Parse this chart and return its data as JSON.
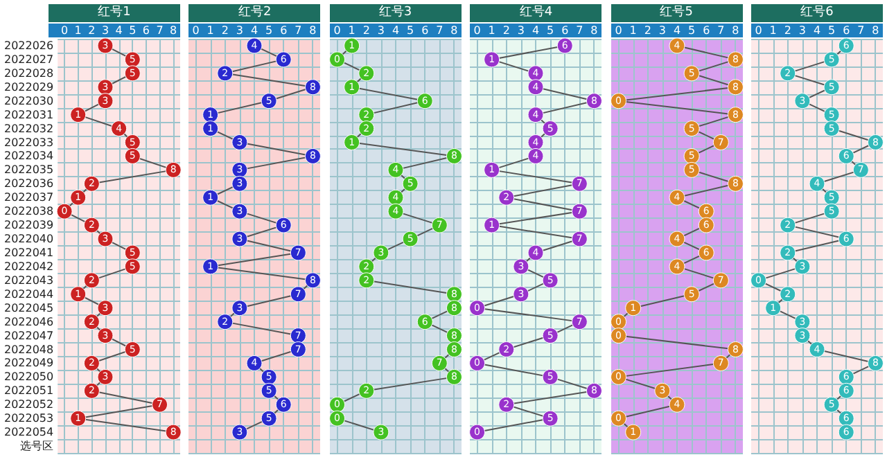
{
  "chart_data": [
    {
      "type": "line",
      "title": "红号1",
      "orientation": "horizontal",
      "categories": [
        "2022026",
        "2022027",
        "2022028",
        "2022029",
        "2022030",
        "2022031",
        "2022032",
        "2022033",
        "2022034",
        "2022035",
        "2022036",
        "2022037",
        "2022038",
        "2022039",
        "2022040",
        "2022041",
        "2022042",
        "2022043",
        "2022044",
        "2022045",
        "2022046",
        "2022047",
        "2022048",
        "2022049",
        "2022050",
        "2022051",
        "2022052",
        "2022053",
        "2022054",
        "选号区"
      ],
      "values": [
        3,
        5,
        5,
        3,
        3,
        1,
        4,
        5,
        5,
        8,
        2,
        1,
        0,
        2,
        3,
        5,
        5,
        2,
        1,
        3,
        2,
        3,
        5,
        2,
        3,
        2,
        7,
        1,
        8,
        null
      ],
      "color": "#cc2222",
      "xlim": [
        -0.5,
        8.5
      ],
      "xticks": [
        0,
        1,
        2,
        3,
        4,
        5,
        6,
        7,
        8
      ],
      "grid": true,
      "marker": "circle",
      "data_labels": true
    },
    {
      "type": "line",
      "title": "红号2",
      "orientation": "horizontal",
      "categories": [
        null,
        null,
        null,
        null,
        null,
        null,
        null,
        null,
        null,
        null,
        null,
        null,
        null,
        null,
        null,
        null,
        null,
        null,
        null,
        null,
        null,
        null,
        null,
        null,
        null,
        null,
        null,
        null,
        null,
        null
      ],
      "values": [
        4,
        6,
        2,
        8,
        5,
        1,
        1,
        3,
        8,
        3,
        3,
        1,
        3,
        6,
        3,
        7,
        1,
        8,
        7,
        3,
        2,
        7,
        7,
        4,
        5,
        5,
        6,
        5,
        3,
        null
      ],
      "color": "#2a2ad0",
      "xlim": [
        -0.5,
        8.5
      ],
      "xticks": [
        0,
        1,
        2,
        3,
        4,
        5,
        6,
        7,
        8
      ],
      "grid": true,
      "marker": "circle",
      "data_labels": true,
      "tick_labels": "x"
    },
    {
      "type": "line",
      "title": "红号3",
      "orientation": "horizontal",
      "categories": [
        null,
        null,
        null,
        null,
        null,
        null,
        null,
        null,
        null,
        null,
        null,
        null,
        null,
        null,
        null,
        null,
        null,
        null,
        null,
        null,
        null,
        null,
        null,
        null,
        null,
        null,
        null,
        null,
        null,
        null
      ],
      "values": [
        1,
        0,
        2,
        1,
        6,
        2,
        2,
        1,
        8,
        4,
        5,
        4,
        4,
        7,
        5,
        3,
        2,
        2,
        8,
        8,
        6,
        8,
        8,
        7,
        8,
        2,
        0,
        0,
        3,
        null
      ],
      "color": "#44c222",
      "xlim": [
        -0.5,
        8.5
      ],
      "xticks": [
        0,
        1,
        2,
        3,
        4,
        5,
        6,
        7,
        8
      ],
      "grid": true,
      "marker": "circle",
      "data_labels": true,
      "tick_labels": "x"
    },
    {
      "type": "line",
      "title": "红号4",
      "orientation": "horizontal",
      "categories": [
        null,
        null,
        null,
        null,
        null,
        null,
        null,
        null,
        null,
        null,
        null,
        null,
        null,
        null,
        null,
        null,
        null,
        null,
        null,
        null,
        null,
        null,
        null,
        null,
        null,
        null,
        null,
        null,
        null,
        null
      ],
      "values": [
        6,
        1,
        4,
        4,
        8,
        4,
        5,
        4,
        4,
        1,
        7,
        2,
        7,
        1,
        7,
        4,
        3,
        5,
        3,
        0,
        7,
        5,
        2,
        0,
        5,
        8,
        2,
        5,
        0,
        null
      ],
      "color": "#9933cc",
      "xlim": [
        -0.5,
        8.5
      ],
      "xticks": [
        0,
        1,
        2,
        3,
        4,
        5,
        6,
        7,
        8
      ],
      "grid": true,
      "marker": "circle",
      "data_labels": true,
      "tick_labels": "x"
    },
    {
      "type": "line",
      "title": "红号5",
      "orientation": "horizontal",
      "categories": [
        null,
        null,
        null,
        null,
        null,
        null,
        null,
        null,
        null,
        null,
        null,
        null,
        null,
        null,
        null,
        null,
        null,
        null,
        null,
        null,
        null,
        null,
        null,
        null,
        null,
        null,
        null,
        null,
        null,
        null
      ],
      "values": [
        4,
        8,
        5,
        8,
        0,
        8,
        5,
        7,
        5,
        5,
        8,
        4,
        6,
        6,
        4,
        6,
        4,
        7,
        5,
        1,
        0,
        0,
        8,
        7,
        0,
        3,
        4,
        0,
        1,
        null
      ],
      "color": "#dd8822",
      "xlim": [
        -0.5,
        8.5
      ],
      "xticks": [
        0,
        1,
        2,
        3,
        4,
        5,
        6,
        7,
        8
      ],
      "grid": true,
      "marker": "circle",
      "data_labels": true,
      "tick_labels": "x"
    },
    {
      "type": "line",
      "title": "红号6",
      "orientation": "horizontal",
      "categories": [
        null,
        null,
        null,
        null,
        null,
        null,
        null,
        null,
        null,
        null,
        null,
        null,
        null,
        null,
        null,
        null,
        null,
        null,
        null,
        null,
        null,
        null,
        null,
        null,
        null,
        null,
        null,
        null,
        null,
        null
      ],
      "values": [
        6,
        5,
        2,
        5,
        3,
        5,
        5,
        8,
        6,
        7,
        4,
        5,
        5,
        2,
        6,
        2,
        3,
        0,
        2,
        1,
        3,
        3,
        4,
        8,
        6,
        6,
        5,
        6,
        6,
        null
      ],
      "color": "#33bbbb",
      "xlim": [
        -0.5,
        8.5
      ],
      "xticks": [
        0,
        1,
        2,
        3,
        4,
        5,
        6,
        7,
        8
      ],
      "grid": true,
      "marker": "circle",
      "data_labels": true,
      "tick_labels": "x"
    }
  ]
}
